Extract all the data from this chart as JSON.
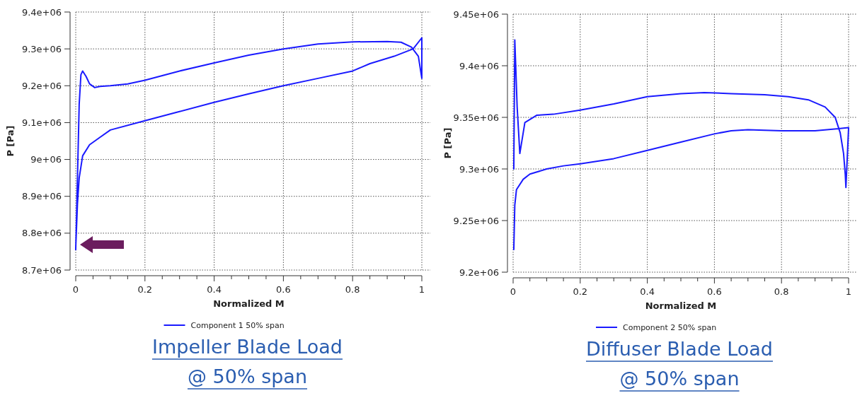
{
  "chart_data": [
    {
      "type": "line",
      "title": "Impeller Blade Load @ 50% span",
      "xlabel": "Normalized M",
      "ylabel": "P [Pa]",
      "xlim": [
        0,
        1
      ],
      "ylim": [
        8700000,
        9400000
      ],
      "xticks": [
        0,
        {
          "value": 0.05,
          "label": null
        },
        {
          "value": 0.1,
          "label": null
        },
        {
          "value": 0.15,
          "label": null
        },
        0.2,
        {
          "value": 0.25,
          "label": null
        },
        {
          "value": 0.3,
          "label": null
        },
        {
          "value": 0.35,
          "label": null
        },
        0.4,
        {
          "value": 0.45,
          "label": null
        },
        {
          "value": 0.5,
          "label": null
        },
        {
          "value": 0.55,
          "label": null
        },
        0.6,
        {
          "value": 0.65,
          "label": null
        },
        {
          "value": 0.7,
          "label": null
        },
        {
          "value": 0.75,
          "label": null
        },
        0.8,
        {
          "value": 0.85,
          "label": null
        },
        {
          "value": 0.9,
          "label": null
        },
        {
          "value": 0.95,
          "label": null
        },
        1
      ],
      "yticks": [
        {
          "value": 8700000,
          "label": "8.7e+06"
        },
        {
          "value": 8800000,
          "label": "8.8e+06"
        },
        {
          "value": 8900000,
          "label": "8.9e+06"
        },
        {
          "value": 9000000,
          "label": "9e+06"
        },
        {
          "value": 9100000,
          "label": "9.1e+06"
        },
        {
          "value": 9200000,
          "label": "9.2e+06"
        },
        {
          "value": 9300000,
          "label": "9.3e+06"
        },
        {
          "value": 9400000,
          "label": "9.4e+06"
        }
      ],
      "grid": true,
      "legend": "bottom",
      "line_style": "solid",
      "series": [
        {
          "name": "Component 1 50% span",
          "color": "#1a1aff",
          "x": [
            0,
            0.005,
            0.01,
            0.015,
            0.02,
            0.03,
            0.04,
            0.055,
            0.07,
            0.1,
            0.15,
            0.2,
            0.3,
            0.4,
            0.5,
            0.6,
            0.7,
            0.8,
            0.9,
            0.94,
            0.97,
            0.99,
            1,
            1,
            0.975,
            0.92,
            0.85,
            0.8,
            0.7,
            0.6,
            0.5,
            0.4,
            0.3,
            0.2,
            0.1,
            0.07,
            0.04,
            0.02,
            0.01,
            0.005,
            0
          ],
          "values": [
            8755000,
            8950000,
            9150000,
            9230000,
            9240000,
            9225000,
            9205000,
            9195000,
            9198000,
            9200000,
            9205000,
            9215000,
            9240000,
            9262000,
            9283000,
            9300000,
            9313000,
            9319000,
            9320000,
            9318000,
            9305000,
            9280000,
            9220000,
            9330000,
            9300000,
            9280000,
            9260000,
            9240000,
            9220000,
            9200000,
            9178000,
            9155000,
            9130000,
            9105000,
            9080000,
            9060000,
            9040000,
            9010000,
            8950000,
            8880000,
            8760000
          ]
        }
      ]
    },
    {
      "type": "line",
      "title": "Diffuser Blade Load @ 50% span",
      "xlabel": "Normalized M",
      "ylabel": "P [Pa]",
      "xlim": [
        0,
        1
      ],
      "ylim": [
        9200000,
        9450000
      ],
      "xticks": [
        0,
        {
          "value": 0.05,
          "label": null
        },
        {
          "value": 0.1,
          "label": null
        },
        {
          "value": 0.15,
          "label": null
        },
        0.2,
        {
          "value": 0.25,
          "label": null
        },
        {
          "value": 0.3,
          "label": null
        },
        {
          "value": 0.35,
          "label": null
        },
        0.4,
        {
          "value": 0.45,
          "label": null
        },
        {
          "value": 0.5,
          "label": null
        },
        {
          "value": 0.55,
          "label": null
        },
        0.6,
        {
          "value": 0.65,
          "label": null
        },
        {
          "value": 0.7,
          "label": null
        },
        {
          "value": 0.75,
          "label": null
        },
        0.8,
        {
          "value": 0.85,
          "label": null
        },
        {
          "value": 0.9,
          "label": null
        },
        {
          "value": 0.95,
          "label": null
        },
        1
      ],
      "yticks": [
        {
          "value": 9200000,
          "label": "9.2e+06"
        },
        {
          "value": 9250000,
          "label": "9.25e+06"
        },
        {
          "value": 9300000,
          "label": "9.3e+06"
        },
        {
          "value": 9350000,
          "label": "9.35e+06"
        },
        {
          "value": 9400000,
          "label": "9.4e+06"
        },
        {
          "value": 9450000,
          "label": "9.45e+06"
        }
      ],
      "grid": true,
      "legend": "bottom",
      "line_style": "solid",
      "series": [
        {
          "name": "Component 2 50% span",
          "color": "#1a1aff",
          "x": [
            0.002,
            0.005,
            0.01,
            0.03,
            0.05,
            0.1,
            0.15,
            0.2,
            0.3,
            0.4,
            0.5,
            0.6,
            0.65,
            0.7,
            0.8,
            0.9,
            0.97,
            1,
            0.992,
            0.99,
            0.985,
            0.975,
            0.96,
            0.93,
            0.88,
            0.82,
            0.75,
            0.65,
            0.57,
            0.5,
            0.4,
            0.3,
            0.2,
            0.12,
            0.07,
            0.035,
            0.02,
            0.012,
            0.005,
            0.002
          ],
          "values": [
            9222000,
            9265000,
            9280000,
            9290000,
            9295000,
            9300000,
            9303000,
            9305000,
            9310000,
            9318000,
            9326000,
            9334000,
            9337000,
            9338000,
            9337000,
            9337000,
            9339000,
            9340000,
            9282000,
            9295000,
            9315000,
            9335000,
            9350000,
            9360000,
            9367000,
            9370000,
            9372000,
            9373000,
            9374000,
            9373000,
            9370000,
            9363000,
            9357000,
            9353000,
            9352000,
            9345000,
            9315000,
            9360000,
            9425000,
            9300000
          ]
        }
      ]
    }
  ]
}
